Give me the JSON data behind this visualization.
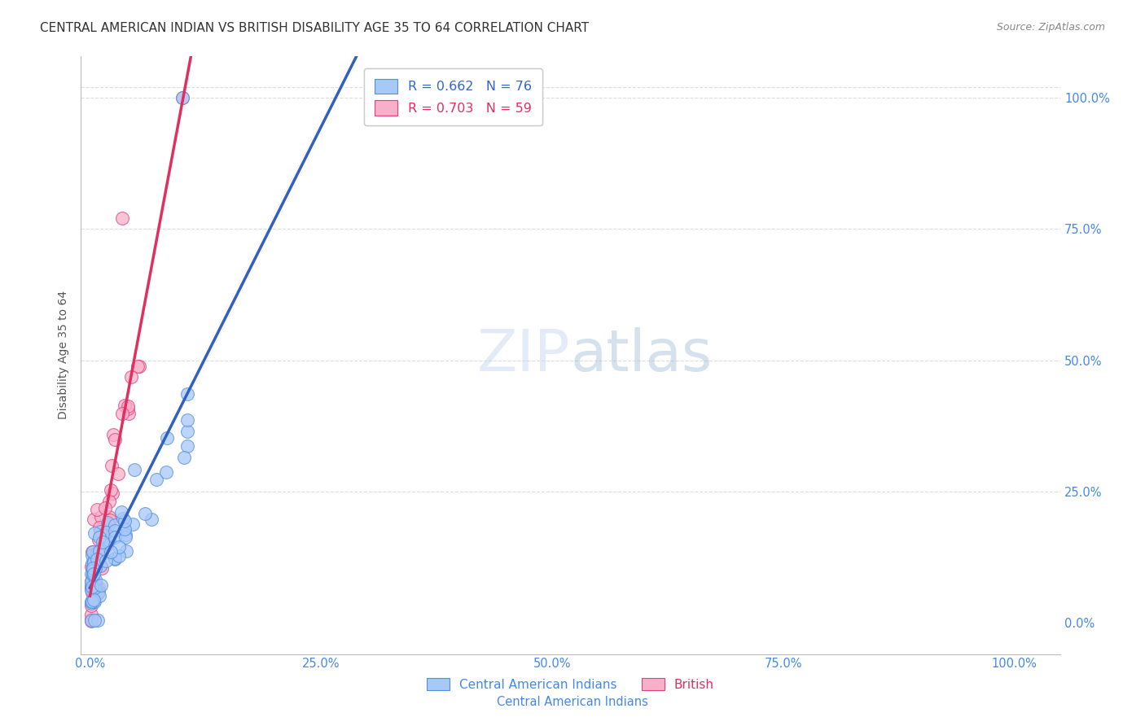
{
  "title": "CENTRAL AMERICAN INDIAN VS BRITISH DISABILITY AGE 35 TO 64 CORRELATION CHART",
  "source": "Source: ZipAtlas.com",
  "ylabel": "Disability Age 35 to 64",
  "watermark": "ZIPatlas",
  "r_blue": 0.662,
  "n_blue": 76,
  "r_pink": 0.703,
  "n_pink": 59,
  "blue_fill": "#a8c8f8",
  "blue_edge": "#5090e0",
  "pink_fill": "#f8b0c8",
  "pink_edge": "#e04080",
  "blue_line_color": "#3060c0",
  "pink_line_color": "#e03060",
  "dashed_line_color": "#aaaaaa",
  "grid_color": "#dddddd",
  "background_color": "#ffffff",
  "title_fontsize": 11,
  "axis_label_fontsize": 10,
  "tick_fontsize": 10.5,
  "tick_color": "#4488ee",
  "legend_label_blue": "Central American Indians",
  "legend_label_pink": "British",
  "legend_r_color": "#3366cc",
  "legend_n_color": "#3366cc",
  "xtick_labels": [
    "0.0%",
    "25.0%",
    "50.0%",
    "75.0%",
    "100.0%"
  ],
  "ytick_labels_right": [
    "0.0%",
    "25.0%",
    "50.0%",
    "75.0%",
    "100.0%"
  ],
  "blue_x": [
    0.001,
    0.002,
    0.002,
    0.002,
    0.003,
    0.003,
    0.003,
    0.003,
    0.004,
    0.004,
    0.004,
    0.004,
    0.005,
    0.005,
    0.005,
    0.006,
    0.006,
    0.006,
    0.007,
    0.007,
    0.007,
    0.008,
    0.008,
    0.008,
    0.009,
    0.009,
    0.009,
    0.01,
    0.01,
    0.01,
    0.011,
    0.011,
    0.012,
    0.012,
    0.013,
    0.013,
    0.014,
    0.014,
    0.015,
    0.015,
    0.016,
    0.016,
    0.017,
    0.018,
    0.018,
    0.019,
    0.02,
    0.021,
    0.022,
    0.023,
    0.024,
    0.025,
    0.026,
    0.027,
    0.028,
    0.029,
    0.03,
    0.031,
    0.032,
    0.033,
    0.034,
    0.035,
    0.036,
    0.038,
    0.04,
    0.042,
    0.044,
    0.046,
    0.048,
    0.05,
    0.055,
    0.06,
    0.065,
    0.07,
    0.08,
    0.1
  ],
  "blue_y": [
    0.05,
    0.06,
    0.045,
    0.04,
    0.07,
    0.065,
    0.055,
    0.05,
    0.08,
    0.07,
    0.06,
    0.05,
    0.09,
    0.075,
    0.06,
    0.095,
    0.08,
    0.065,
    0.1,
    0.085,
    0.07,
    0.105,
    0.09,
    0.075,
    0.11,
    0.095,
    0.08,
    0.115,
    0.1,
    0.085,
    0.12,
    0.105,
    0.125,
    0.11,
    0.13,
    0.115,
    0.135,
    0.12,
    0.14,
    0.125,
    0.145,
    0.13,
    0.15,
    0.155,
    0.14,
    0.16,
    0.165,
    0.17,
    0.175,
    0.18,
    0.185,
    0.19,
    0.195,
    0.2,
    0.205,
    0.21,
    0.215,
    0.22,
    0.225,
    0.23,
    0.235,
    0.24,
    0.245,
    0.25,
    0.26,
    0.27,
    0.28,
    0.29,
    0.3,
    0.31,
    0.32,
    0.33,
    0.34,
    0.35,
    0.36,
    1.0
  ],
  "pink_x": [
    0.001,
    0.002,
    0.002,
    0.002,
    0.003,
    0.003,
    0.003,
    0.004,
    0.004,
    0.004,
    0.005,
    0.005,
    0.005,
    0.006,
    0.006,
    0.006,
    0.007,
    0.007,
    0.007,
    0.008,
    0.008,
    0.009,
    0.009,
    0.01,
    0.01,
    0.011,
    0.011,
    0.012,
    0.013,
    0.013,
    0.014,
    0.015,
    0.015,
    0.016,
    0.017,
    0.017,
    0.018,
    0.019,
    0.02,
    0.021,
    0.022,
    0.023,
    0.025,
    0.027,
    0.028,
    0.029,
    0.03,
    0.032,
    0.034,
    0.036,
    0.038,
    0.04,
    0.042,
    0.045,
    0.048,
    0.05,
    0.055,
    0.1,
    0.035
  ],
  "pink_y": [
    0.04,
    0.055,
    0.045,
    0.035,
    0.065,
    0.055,
    0.045,
    0.07,
    0.06,
    0.05,
    0.075,
    0.065,
    0.055,
    0.08,
    0.07,
    0.06,
    0.085,
    0.075,
    0.065,
    0.09,
    0.08,
    0.095,
    0.085,
    0.1,
    0.09,
    0.105,
    0.095,
    0.11,
    0.12,
    0.11,
    0.125,
    0.13,
    0.12,
    0.135,
    0.14,
    0.13,
    0.145,
    0.15,
    0.155,
    0.16,
    0.165,
    0.17,
    0.18,
    0.19,
    0.195,
    0.2,
    0.21,
    0.22,
    0.23,
    0.24,
    0.25,
    0.26,
    0.27,
    0.28,
    0.29,
    0.3,
    0.31,
    1.0,
    0.77
  ]
}
